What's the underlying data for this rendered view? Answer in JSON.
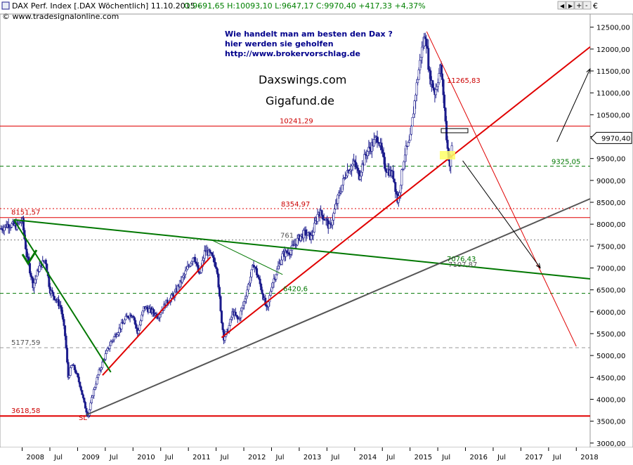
{
  "header": {
    "title": "DAX Perf. Index [.DAX  Wöchentlich] 11.10.2015 - ",
    "ohlc": "O:9691,65 H:10093,10 L:9647,17 C:9970,40 +417,33 +4,37%",
    "source": "© www.tradesignalonline.com",
    "currency": "€"
  },
  "annotations": {
    "promo_line1": "Wie handelt man am besten  den Dax ?",
    "promo_line2": "hier werden sie geholfen",
    "promo_line3": "http://www.brokervorschlag.de",
    "brand1": "Daxswings.com",
    "brand2": "Gigafund.de",
    "sl_label": "SL",
    "last_price": "9970,40",
    "partial_label": "761",
    "overlap_label_a": "7076,43",
    "overlap_label_b": "7107,87"
  },
  "colors": {
    "candle": "#1c1c8c",
    "resistance_red": "#e00000",
    "support_green": "#007700",
    "long_trend_grey": "#555555",
    "highlight_yellow": "#ffff66"
  },
  "chart_data": {
    "type": "candlestick",
    "instrument": "DAX Perf. Index",
    "period": "weekly",
    "ylim": [
      2900,
      12800
    ],
    "yticks": [
      "3000,00",
      "3500,00",
      "4000,00",
      "4500,00",
      "5000,00",
      "5500,00",
      "6000,00",
      "6500,00",
      "7000,00",
      "7500,00",
      "8000,00",
      "8500,00",
      "9000,00",
      "9500,00",
      "10000,00",
      "10500,00",
      "11000,00",
      "11500,00",
      "12000,00",
      "12500,00"
    ],
    "xlim": [
      2007.6,
      2018.25
    ],
    "xticks": [
      {
        "t": 2008.0,
        "label": "2008"
      },
      {
        "t": 2008.5,
        "label": "Jul"
      },
      {
        "t": 2009.0,
        "label": "2009"
      },
      {
        "t": 2009.5,
        "label": "Jul"
      },
      {
        "t": 2010.0,
        "label": "2010"
      },
      {
        "t": 2010.5,
        "label": "Jul"
      },
      {
        "t": 2011.0,
        "label": "2011"
      },
      {
        "t": 2011.5,
        "label": "Jul"
      },
      {
        "t": 2012.0,
        "label": "2012"
      },
      {
        "t": 2012.5,
        "label": "Jul"
      },
      {
        "t": 2013.0,
        "label": "2013"
      },
      {
        "t": 2013.5,
        "label": "Jul"
      },
      {
        "t": 2014.0,
        "label": "2014"
      },
      {
        "t": 2014.5,
        "label": "Jul"
      },
      {
        "t": 2015.0,
        "label": "2015"
      },
      {
        "t": 2015.5,
        "label": "Jul"
      },
      {
        "t": 2016.0,
        "label": "2016"
      },
      {
        "t": 2016.5,
        "label": "Jul"
      },
      {
        "t": 2017.0,
        "label": "2017"
      },
      {
        "t": 2017.5,
        "label": "Jul"
      },
      {
        "t": 2018.0,
        "label": "2018"
      }
    ],
    "price_path": [
      [
        2007.62,
        7900
      ],
      [
        2007.75,
        8000
      ],
      [
        2007.9,
        7950
      ],
      [
        2008.0,
        8100
      ],
      [
        2008.08,
        7300
      ],
      [
        2008.2,
        6600
      ],
      [
        2008.3,
        7000
      ],
      [
        2008.42,
        7200
      ],
      [
        2008.5,
        6500
      ],
      [
        2008.6,
        6300
      ],
      [
        2008.7,
        6100
      ],
      [
        2008.78,
        5400
      ],
      [
        2008.83,
        4500
      ],
      [
        2008.9,
        4800
      ],
      [
        2008.96,
        4650
      ],
      [
        2009.05,
        4300
      ],
      [
        2009.12,
        3900
      ],
      [
        2009.19,
        3600
      ],
      [
        2009.27,
        4100
      ],
      [
        2009.38,
        4600
      ],
      [
        2009.5,
        5000
      ],
      [
        2009.6,
        5300
      ],
      [
        2009.75,
        5600
      ],
      [
        2009.9,
        5900
      ],
      [
        2010.0,
        5950
      ],
      [
        2010.08,
        5500
      ],
      [
        2010.2,
        6100
      ],
      [
        2010.35,
        6000
      ],
      [
        2010.45,
        5900
      ],
      [
        2010.6,
        6200
      ],
      [
        2010.75,
        6400
      ],
      [
        2010.95,
        6900
      ],
      [
        2011.1,
        7300
      ],
      [
        2011.2,
        6800
      ],
      [
        2011.3,
        7400
      ],
      [
        2011.4,
        7300
      ],
      [
        2011.52,
        7000
      ],
      [
        2011.58,
        6000
      ],
      [
        2011.64,
        5400
      ],
      [
        2011.72,
        5600
      ],
      [
        2011.8,
        6000
      ],
      [
        2011.9,
        5800
      ],
      [
        2012.0,
        6200
      ],
      [
        2012.18,
        7100
      ],
      [
        2012.3,
        6600
      ],
      [
        2012.42,
        6000
      ],
      [
        2012.5,
        6600
      ],
      [
        2012.7,
        7300
      ],
      [
        2012.85,
        7400
      ],
      [
        2013.0,
        7700
      ],
      [
        2013.1,
        7800
      ],
      [
        2013.22,
        7700
      ],
      [
        2013.35,
        8300
      ],
      [
        2013.48,
        8100
      ],
      [
        2013.55,
        7900
      ],
      [
        2013.7,
        8600
      ],
      [
        2013.85,
        9200
      ],
      [
        2014.0,
        9400
      ],
      [
        2014.08,
        9100
      ],
      [
        2014.2,
        9600
      ],
      [
        2014.42,
        10000
      ],
      [
        2014.55,
        9300
      ],
      [
        2014.7,
        9100
      ],
      [
        2014.78,
        8500
      ],
      [
        2014.9,
        9600
      ],
      [
        2015.0,
        9900
      ],
      [
        2015.1,
        11000
      ],
      [
        2015.2,
        11900
      ],
      [
        2015.28,
        12375
      ],
      [
        2015.35,
        11400
      ],
      [
        2015.45,
        11000
      ],
      [
        2015.55,
        11600
      ],
      [
        2015.6,
        11000
      ],
      [
        2015.67,
        9800
      ],
      [
        2015.72,
        9300
      ],
      [
        2015.77,
        9970
      ]
    ]
  },
  "levels": {
    "r1": "11265,83",
    "r2": "10241,29",
    "s1": "9325,05",
    "r3": "8354,97",
    "r4": "8151,57",
    "s2": "6420,6",
    "g1": "5177,59",
    "sl": "3618,58"
  },
  "y_values": {
    "r2": 10241.29,
    "s1": 9325.05,
    "r3": 8354.97,
    "r4": 8151.57,
    "line7600": 7640,
    "s2": 6420.6,
    "g1": 5177.59,
    "sl": 3618.58,
    "last": 9970.4
  },
  "trendlines": [
    {
      "name": "red-rising-trendline",
      "color": "#e00000",
      "width": 2,
      "from": [
        2011.6,
        5410
      ],
      "to": [
        2018.25,
        12050
      ]
    },
    {
      "name": "red-channel-segment-2009",
      "color": "#e00000",
      "width": 2,
      "from": [
        2009.45,
        4550
      ],
      "to": [
        2011.4,
        7250
      ]
    },
    {
      "name": "red-falling-line-2015",
      "color": "#e00000",
      "width": 1,
      "from": [
        2015.3,
        12400
      ],
      "to": [
        2018.0,
        5210
      ]
    },
    {
      "name": "green-falling-line-2008",
      "color": "#007700",
      "width": 2,
      "from": [
        2007.85,
        8100
      ],
      "to": [
        2009.6,
        4620
      ]
    },
    {
      "name": "green-long-falling-line",
      "color": "#007700",
      "width": 2,
      "from": [
        2007.85,
        8100
      ],
      "to": [
        2018.25,
        6750
      ]
    },
    {
      "name": "green-short-line-2011",
      "color": "#007700",
      "width": 1,
      "from": [
        2011.4,
        7650
      ],
      "to": [
        2012.7,
        6850
      ]
    },
    {
      "name": "grey-long-trendline",
      "color": "#555555",
      "width": 2,
      "from": [
        2009.15,
        3640
      ],
      "to": [
        2018.25,
        8580
      ]
    },
    {
      "name": "black-forecast-arrow",
      "color": "#000000",
      "width": 1,
      "from": [
        2015.95,
        9450
      ],
      "to": [
        2017.35,
        7000
      ]
    },
    {
      "name": "black-top-arrow",
      "color": "#000000",
      "width": 1,
      "from": [
        2017.65,
        9880
      ],
      "to": [
        2018.25,
        11550
      ]
    }
  ]
}
